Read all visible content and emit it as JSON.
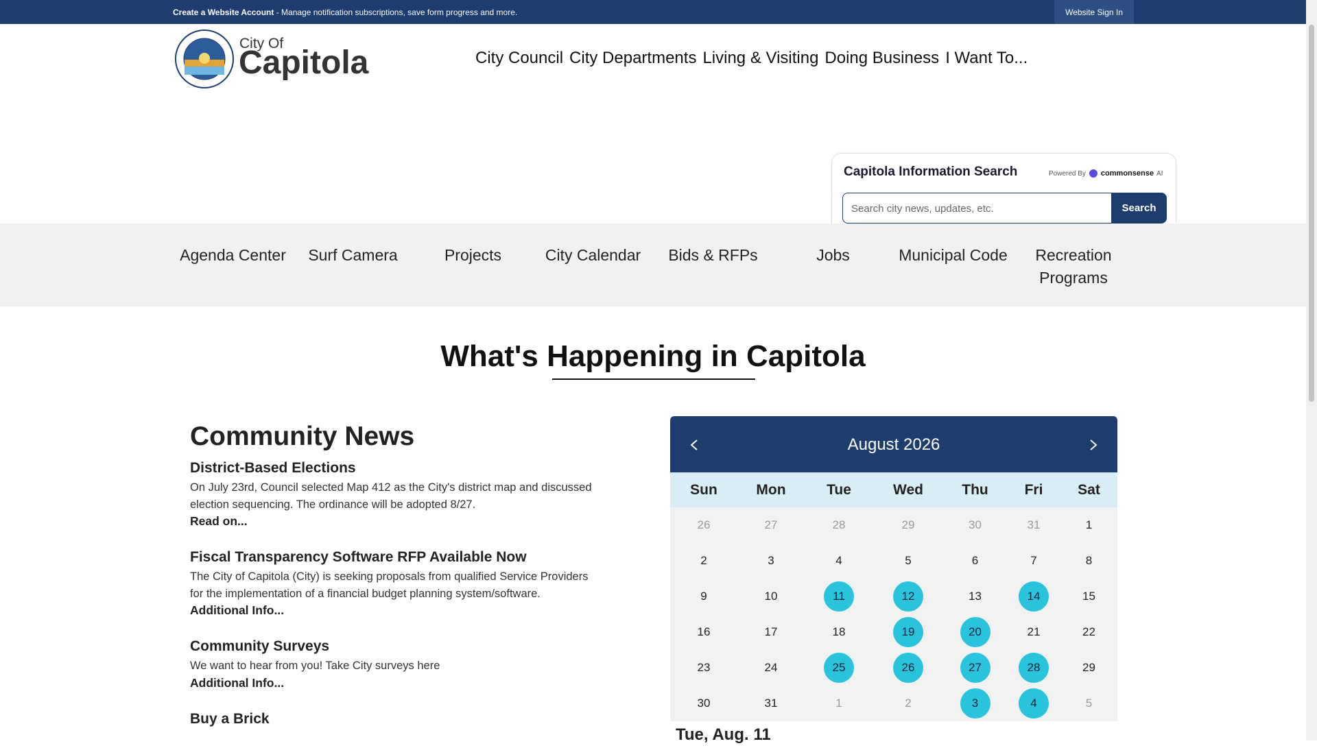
{
  "topbar": {
    "create_account": "Create a Website Account",
    "message": "- Manage notification subscriptions, save form progress and more.",
    "sign_in": "Website Sign In"
  },
  "logo": {
    "small": "City Of",
    "big": "Capitola"
  },
  "nav": [
    "City Council",
    "City Departments",
    "Living & Visiting",
    "Doing Business",
    "I Want To..."
  ],
  "search": {
    "title": "Capitola Information Search",
    "powered": "Powered By",
    "brand": "commonsense",
    "brand_suffix": "AI",
    "placeholder": "Search city news, updates, etc.",
    "button": "Search"
  },
  "quick_links": [
    "Agenda Center",
    "Surf Camera",
    "Projects",
    "City Calendar",
    "Bids & RFPs",
    "Jobs",
    "Municipal Code",
    "Recreation Programs"
  ],
  "section_title": {
    "before": "What's",
    "underlined": "Happening in",
    "after": "Capitola"
  },
  "news": {
    "heading": "Community News",
    "items": [
      {
        "title": "District-Based Elections",
        "body": "On July 23rd, Council selected Map 412 as the City's district map and discussed election sequencing. The ordinance will be adopted 8/27.",
        "link": "Read on..."
      },
      {
        "title": "Fiscal Transparency Software RFP Available Now",
        "body": "The City of Capitola (City) is seeking proposals from qualified Service Providers for the implementation of a financial budget planning system/software.",
        "link": "Additional Info..."
      },
      {
        "title": "Community Surveys",
        "body": "We want to hear from you! Take City surveys here",
        "link": "Additional Info..."
      },
      {
        "title": "Buy a Brick"
      }
    ]
  },
  "calendar": {
    "month": "August 2026",
    "weekdays": [
      "Sun",
      "Mon",
      "Tue",
      "Wed",
      "Thu",
      "Fri",
      "Sat"
    ],
    "weeks": [
      [
        {
          "d": 26,
          "out": true
        },
        {
          "d": 27,
          "out": true
        },
        {
          "d": 28,
          "out": true
        },
        {
          "d": 29,
          "out": true
        },
        {
          "d": 30,
          "out": true
        },
        {
          "d": 31,
          "out": true
        },
        {
          "d": 1
        }
      ],
      [
        {
          "d": 2
        },
        {
          "d": 3
        },
        {
          "d": 4
        },
        {
          "d": 5
        },
        {
          "d": 6
        },
        {
          "d": 7
        },
        {
          "d": 8
        }
      ],
      [
        {
          "d": 9
        },
        {
          "d": 10
        },
        {
          "d": 11,
          "event": true
        },
        {
          "d": 12,
          "event": true
        },
        {
          "d": 13
        },
        {
          "d": 14,
          "event": true
        },
        {
          "d": 15
        }
      ],
      [
        {
          "d": 16
        },
        {
          "d": 17
        },
        {
          "d": 18
        },
        {
          "d": 19,
          "event": true
        },
        {
          "d": 20,
          "event": true
        },
        {
          "d": 21
        },
        {
          "d": 22
        }
      ],
      [
        {
          "d": 23
        },
        {
          "d": 24
        },
        {
          "d": 25,
          "event": true
        },
        {
          "d": 26,
          "event": true
        },
        {
          "d": 27,
          "event": true
        },
        {
          "d": 28,
          "event": true
        },
        {
          "d": 29
        }
      ],
      [
        {
          "d": 30
        },
        {
          "d": 31
        },
        {
          "d": 1,
          "out": true
        },
        {
          "d": 2,
          "out": true
        },
        {
          "d": 3,
          "out": true,
          "event": true
        },
        {
          "d": 4,
          "out": true,
          "event": true
        },
        {
          "d": 5,
          "out": true
        }
      ]
    ],
    "selected_date": "Tue, Aug. 11"
  }
}
